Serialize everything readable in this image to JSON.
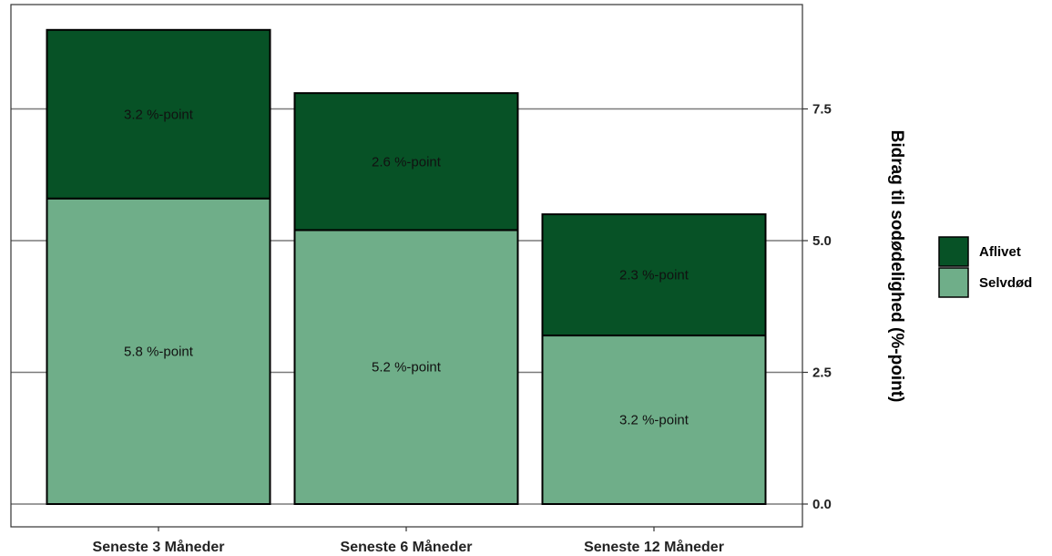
{
  "chart_data": {
    "type": "bar",
    "stacked": true,
    "categories": [
      "Seneste 3 Måneder",
      "Seneste 6 Måneder",
      "Seneste 12 Måneder"
    ],
    "series": [
      {
        "name": "Selvdød",
        "color": "#6fae89",
        "values": [
          5.8,
          5.2,
          3.2
        ],
        "labels": [
          "5.8 %-point",
          "5.2 %-point",
          "3.2 %-point"
        ]
      },
      {
        "name": "Aflivet",
        "color": "#075226",
        "values": [
          3.2,
          2.6,
          2.3
        ],
        "labels": [
          "3.2 %-point",
          "2.6 %-point",
          "2.3 %-point"
        ]
      }
    ],
    "xlabel": "",
    "ylabel": "Bidrag til sodødelighed (%-point)",
    "yaxis_position": "right",
    "ylim": [
      0,
      9
    ],
    "yticks": [
      0,
      2.5,
      5,
      7.5
    ],
    "ytick_labels": [
      "0.0",
      "2.5",
      "5.0",
      "7.5"
    ],
    "grid": "horizontal-major",
    "legend_position": "right",
    "legend_order": [
      "Aflivet",
      "Selvdød"
    ]
  }
}
